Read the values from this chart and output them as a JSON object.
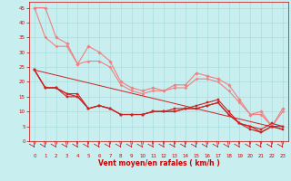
{
  "background_color": "#c8eef0",
  "grid_color": "#aadddd",
  "xlabel": "Vent moyen/en rafales ( km/h )",
  "xlabel_color": "#cc0000",
  "tick_color": "#cc0000",
  "xlim": [
    -0.5,
    23.5
  ],
  "ylim": [
    0,
    47
  ],
  "yticks": [
    0,
    5,
    10,
    15,
    20,
    25,
    30,
    35,
    40,
    45
  ],
  "xticks": [
    0,
    1,
    2,
    3,
    4,
    5,
    6,
    7,
    8,
    9,
    10,
    11,
    12,
    13,
    14,
    15,
    16,
    17,
    18,
    19,
    20,
    21,
    22,
    23
  ],
  "series": [
    {
      "color": "#f08080",
      "lw": 0.8,
      "marker": "D",
      "ms": 1.8,
      "data_x": [
        0,
        1,
        2,
        3,
        4,
        5,
        6,
        7,
        8,
        9,
        10,
        11,
        12,
        13,
        14,
        15,
        16,
        17,
        18,
        19,
        20,
        21,
        22,
        23
      ],
      "data_y": [
        45,
        45,
        35,
        33,
        26,
        32,
        30,
        27,
        20,
        18,
        17,
        18,
        17,
        19,
        19,
        23,
        22,
        21,
        19,
        14,
        9,
        10,
        5,
        11
      ]
    },
    {
      "color": "#f08080",
      "lw": 0.8,
      "marker": "D",
      "ms": 1.5,
      "data_x": [
        0,
        1,
        2,
        3,
        4,
        5,
        6,
        7,
        8,
        9,
        10,
        11,
        12,
        13,
        14,
        15,
        16,
        17,
        18,
        19,
        20,
        21,
        22,
        23
      ],
      "data_y": [
        45,
        35,
        32,
        32,
        26,
        27,
        27,
        25,
        19,
        17,
        16,
        17,
        17,
        18,
        18,
        21,
        21,
        20,
        17,
        13,
        9,
        9,
        5,
        10
      ]
    },
    {
      "color": "#cc2222",
      "lw": 0.8,
      "marker": "s",
      "ms": 1.8,
      "data_x": [
        0,
        1,
        2,
        3,
        4,
        5,
        6,
        7,
        8,
        9,
        10,
        11,
        12,
        13,
        14,
        15,
        16,
        17,
        18,
        19,
        20,
        21,
        22,
        23
      ],
      "data_y": [
        24,
        18,
        18,
        16,
        16,
        11,
        12,
        11,
        9,
        9,
        9,
        10,
        10,
        11,
        11,
        12,
        13,
        14,
        10,
        6,
        5,
        4,
        6,
        5
      ]
    },
    {
      "color": "#cc2222",
      "lw": 0.8,
      "marker": "s",
      "ms": 1.5,
      "data_x": [
        0,
        1,
        2,
        3,
        4,
        5,
        6,
        7,
        8,
        9,
        10,
        11,
        12,
        13,
        14,
        15,
        16,
        17,
        18,
        19,
        20,
        21,
        22,
        23
      ],
      "data_y": [
        24,
        18,
        18,
        16,
        15,
        11,
        12,
        11,
        9,
        9,
        9,
        10,
        10,
        10,
        11,
        11,
        12,
        13,
        9,
        6,
        5,
        3,
        5,
        5
      ]
    },
    {
      "color": "#cc2222",
      "lw": 0.8,
      "marker": "s",
      "ms": 1.5,
      "data_x": [
        0,
        1,
        2,
        3,
        4,
        5,
        6,
        7,
        8,
        9,
        10,
        11,
        12,
        13,
        14,
        15,
        16,
        17,
        18,
        19,
        20,
        21,
        22,
        23
      ],
      "data_y": [
        24,
        18,
        18,
        15,
        15,
        11,
        12,
        11,
        9,
        9,
        9,
        10,
        10,
        10,
        11,
        11,
        12,
        13,
        9,
        6,
        4,
        3,
        5,
        4
      ]
    },
    {
      "color": "#cc2222",
      "lw": 0.7,
      "marker": null,
      "ms": 0,
      "data_x": [
        0,
        23
      ],
      "data_y": [
        24,
        4
      ]
    }
  ],
  "wind_arrows_x": [
    0,
    1,
    2,
    3,
    4,
    5,
    6,
    7,
    8,
    9,
    10,
    11,
    12,
    13,
    14,
    15,
    16,
    17,
    18,
    19,
    20,
    21,
    22,
    23
  ]
}
